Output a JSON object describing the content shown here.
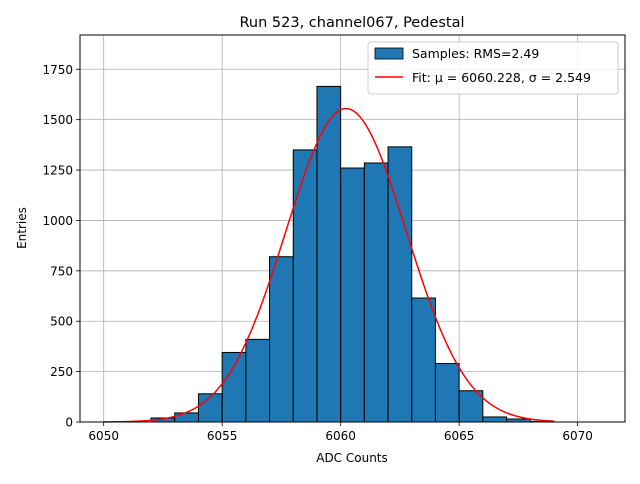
{
  "chart_data": {
    "type": "bar",
    "title": "Run 523, channel067, Pedestal",
    "xlabel": "ADC Counts",
    "ylabel": "Entries",
    "xlim": [
      6049,
      6072
    ],
    "ylim": [
      0,
      1920
    ],
    "xticks": [
      6050,
      6055,
      6060,
      6065,
      6070
    ],
    "yticks": [
      0,
      250,
      500,
      750,
      1000,
      1250,
      1500,
      1750
    ],
    "grid": true,
    "legend_position": "top-right",
    "histogram": {
      "name": "Samples: RMS=2.49",
      "color": "#1f77b4",
      "bin_edges": [
        6052,
        6053,
        6054,
        6055,
        6056,
        6057,
        6058,
        6059,
        6060,
        6061,
        6062,
        6063,
        6064,
        6065,
        6066,
        6067,
        6068,
        6069
      ],
      "counts": [
        20,
        45,
        140,
        345,
        410,
        820,
        1350,
        1665,
        1260,
        1285,
        1365,
        615,
        290,
        155,
        25,
        15,
        3
      ]
    },
    "fit": {
      "name": "Fit: μ = 6060.228, σ = 2.549",
      "color": "#ff0000",
      "mu": 6060.228,
      "sigma": 2.549,
      "amplitude": 1555,
      "x_range": [
        6050,
        6069
      ]
    }
  }
}
